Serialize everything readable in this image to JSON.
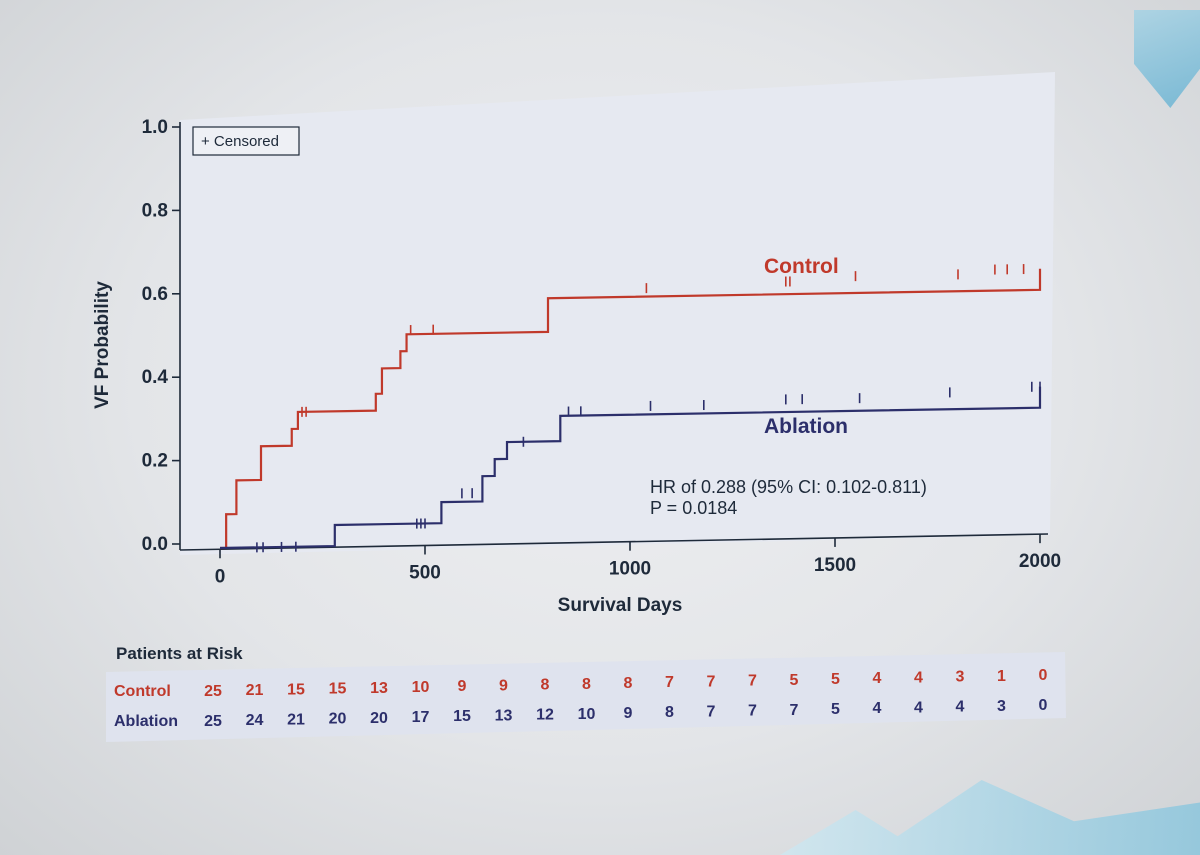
{
  "chart_data": {
    "type": "line",
    "xlabel": "Survival Days",
    "ylabel": "VF Probability",
    "xlim": [
      0,
      2000
    ],
    "ylim": [
      0,
      1.0
    ],
    "x_ticks": [
      "0",
      "500",
      "1000",
      "1500",
      "2000"
    ],
    "y_ticks": [
      "0.0",
      "0.2",
      "0.4",
      "0.6",
      "0.8",
      "1.0"
    ],
    "legend": {
      "label": "+ Censored",
      "placement": "top-left"
    },
    "series": [
      {
        "name": "Control",
        "color": "#c0392b",
        "steps": [
          [
            0,
            0
          ],
          [
            15,
            0.08
          ],
          [
            40,
            0.16
          ],
          [
            100,
            0.24
          ],
          [
            175,
            0.28
          ],
          [
            190,
            0.32
          ],
          [
            380,
            0.36
          ],
          [
            395,
            0.42
          ],
          [
            440,
            0.46
          ],
          [
            455,
            0.5
          ],
          [
            800,
            0.58
          ],
          [
            2000,
            0.63
          ]
        ],
        "censored": [
          [
            200,
            0.32
          ],
          [
            210,
            0.32
          ],
          [
            465,
            0.51
          ],
          [
            520,
            0.51
          ],
          [
            1040,
            0.6
          ],
          [
            1380,
            0.61
          ],
          [
            1390,
            0.61
          ],
          [
            1550,
            0.62
          ],
          [
            1800,
            0.62
          ],
          [
            1890,
            0.63
          ],
          [
            1920,
            0.63
          ],
          [
            1960,
            0.63
          ]
        ]
      },
      {
        "name": "Ablation",
        "color": "#2c2f6b",
        "steps": [
          [
            0,
            0
          ],
          [
            280,
            0.05
          ],
          [
            540,
            0.1
          ],
          [
            640,
            0.16
          ],
          [
            670,
            0.2
          ],
          [
            700,
            0.24
          ],
          [
            830,
            0.3
          ],
          [
            2000,
            0.35
          ]
        ],
        "censored": [
          [
            90,
            0
          ],
          [
            105,
            0
          ],
          [
            150,
            0
          ],
          [
            185,
            0
          ],
          [
            480,
            0.05
          ],
          [
            490,
            0.05
          ],
          [
            500,
            0.05
          ],
          [
            590,
            0.12
          ],
          [
            615,
            0.12
          ],
          [
            740,
            0.24
          ],
          [
            850,
            0.31
          ],
          [
            880,
            0.31
          ],
          [
            1050,
            0.32
          ],
          [
            1180,
            0.32
          ],
          [
            1380,
            0.33
          ],
          [
            1420,
            0.33
          ],
          [
            1560,
            0.33
          ],
          [
            1780,
            0.34
          ],
          [
            1980,
            0.35
          ],
          [
            2000,
            0.35
          ]
        ]
      }
    ],
    "annotations": {
      "hr": "HR of 0.288 (95% CI: 0.102-0.811)",
      "p": "P = 0.0184"
    },
    "risk_table": {
      "title": "Patients at Risk",
      "rows": [
        {
          "label": "Control",
          "color": "#c0392b",
          "values": [
            "25",
            "21",
            "15",
            "15",
            "13",
            "10",
            "9",
            "9",
            "8",
            "8",
            "8",
            "7",
            "7",
            "7",
            "5",
            "5",
            "4",
            "4",
            "3",
            "1",
            "0"
          ]
        },
        {
          "label": "Ablation",
          "color": "#2c2f6b",
          "values": [
            "25",
            "24",
            "21",
            "20",
            "20",
            "17",
            "15",
            "13",
            "12",
            "10",
            "9",
            "8",
            "7",
            "7",
            "7",
            "5",
            "4",
            "4",
            "4",
            "3",
            "0"
          ]
        }
      ]
    }
  }
}
